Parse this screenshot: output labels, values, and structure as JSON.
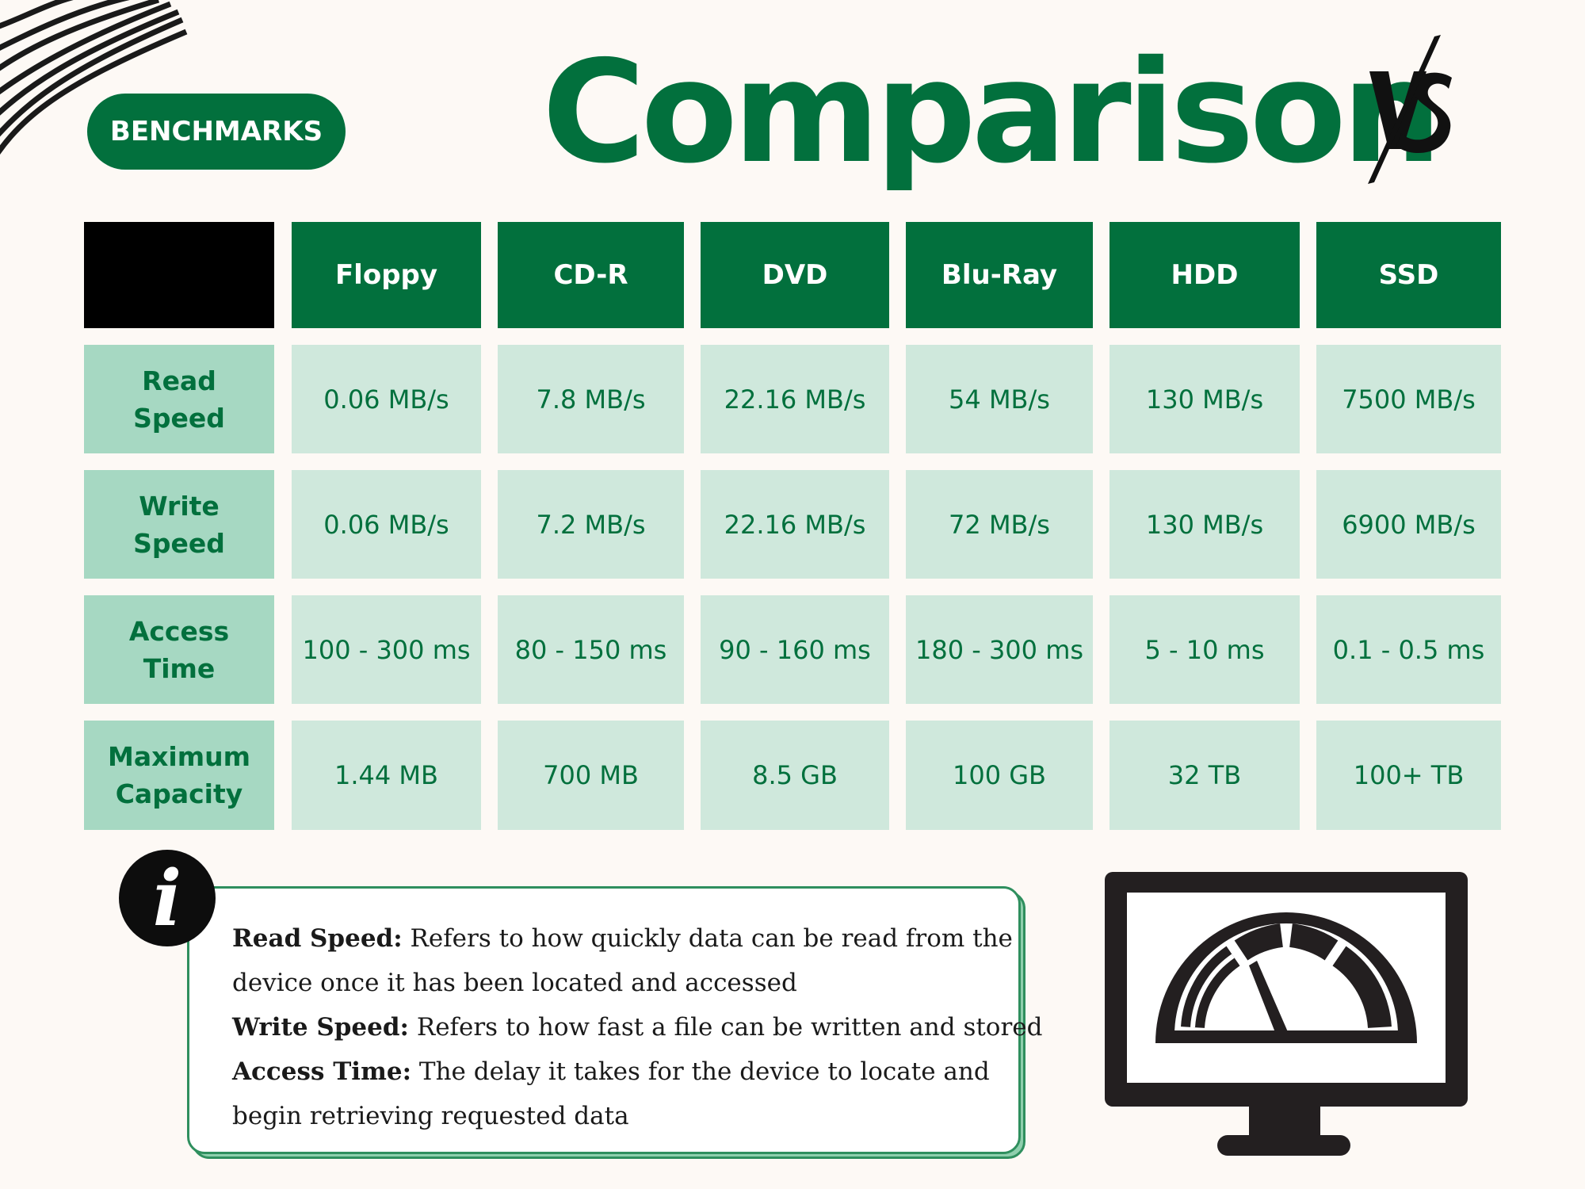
{
  "header": {
    "badge": "BENCHMARKS",
    "title": "Comparison",
    "vs_logo_text": "VS"
  },
  "table": {
    "columns": [
      "Floppy",
      "CD-R",
      "DVD",
      "Blu-Ray",
      "HDD",
      "SSD"
    ],
    "rows": [
      {
        "label_line1": "Read",
        "label_line2": "Speed",
        "values": [
          "0.06 MB/s",
          "7.8 MB/s",
          "22.16 MB/s",
          "54 MB/s",
          "130 MB/s",
          "7500 MB/s"
        ]
      },
      {
        "label_line1": "Write",
        "label_line2": "Speed",
        "values": [
          "0.06 MB/s",
          "7.2 MB/s",
          "22.16 MB/s",
          "72 MB/s",
          "130 MB/s",
          "6900 MB/s"
        ]
      },
      {
        "label_line1": "Access",
        "label_line2": "Time",
        "values": [
          "100 - 300 ms",
          "80 - 150 ms",
          "90 - 160 ms",
          "180 - 300 ms",
          "5 - 10 ms",
          "0.1 - 0.5 ms"
        ]
      },
      {
        "label_line1": "Maximum",
        "label_line2": "Capacity",
        "values": [
          "1.44 MB",
          "700 MB",
          "8.5 GB",
          "100 GB",
          "32 TB",
          "100+ TB"
        ]
      }
    ]
  },
  "info": {
    "icon": "info-icon",
    "icon_glyph": "i",
    "lines": [
      {
        "term": "Read Speed:",
        "text": " Refers to how quickly data can be read from the"
      },
      {
        "term": "",
        "text": "device once it has been located and accessed"
      },
      {
        "term": "Write Speed:",
        "text": " Refers to how fast a file can be written and stored"
      },
      {
        "term": "Access Time:",
        "text": " The delay it takes for the device to locate and"
      },
      {
        "term": "",
        "text": "begin retrieving requested data"
      }
    ]
  },
  "colors": {
    "brand_green": "#02703d",
    "row_header_green": "#a6d8c2",
    "cell_green": "#cfe8dc",
    "background": "#fdf9f5"
  },
  "icons": [
    "stripes-decoration",
    "vs-logo-icon",
    "info-icon",
    "speedometer-monitor-icon"
  ]
}
